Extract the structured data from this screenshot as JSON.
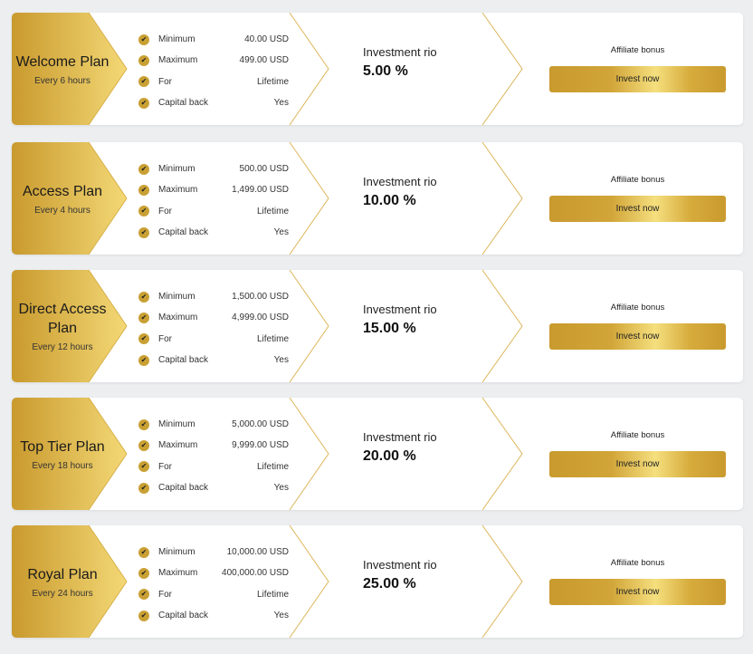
{
  "labels": {
    "minimum": "Minimum",
    "maximum": "Maximum",
    "for": "For",
    "capital_back": "Capital back",
    "roi": "Investment rio",
    "affiliate": "Affiliate bonus",
    "invest": "Invest now"
  },
  "colors": {
    "gold": "#c99a2e",
    "gold_light": "#f5df7e"
  },
  "plans": [
    {
      "name": "Welcome Plan",
      "frequency": "Every 6 hours",
      "minimum": "40.00 USD",
      "maximum": "499.00 USD",
      "for": "Lifetime",
      "capital_back": "Yes",
      "roi": "5.00 %"
    },
    {
      "name": "Access Plan",
      "frequency": "Every 4 hours",
      "minimum": "500.00 USD",
      "maximum": "1,499.00 USD",
      "for": "Lifetime",
      "capital_back": "Yes",
      "roi": "10.00 %"
    },
    {
      "name": "Direct Access Plan",
      "frequency": "Every 12 hours",
      "minimum": "1,500.00 USD",
      "maximum": "4,999.00 USD",
      "for": "Lifetime",
      "capital_back": "Yes",
      "roi": "15.00 %"
    },
    {
      "name": "Top Tier Plan",
      "frequency": "Every 18 hours",
      "minimum": "5,000.00 USD",
      "maximum": "9,999.00 USD",
      "for": "Lifetime",
      "capital_back": "Yes",
      "roi": "20.00 %"
    },
    {
      "name": "Royal Plan",
      "frequency": "Every 24 hours",
      "minimum": "10,000.00 USD",
      "maximum": "400,000.00 USD",
      "for": "Lifetime",
      "capital_back": "Yes",
      "roi": "25.00 %"
    }
  ]
}
